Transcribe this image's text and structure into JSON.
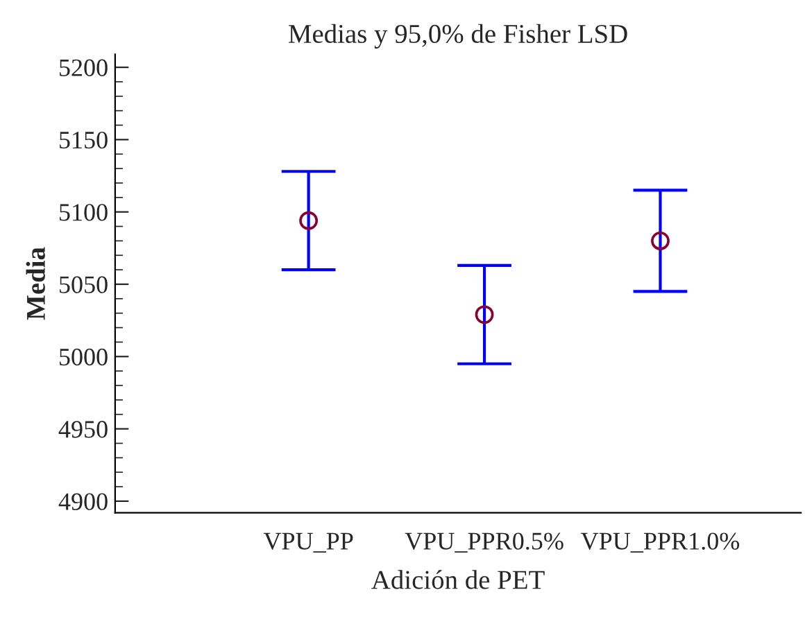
{
  "chart_data": {
    "type": "scatter",
    "title": "Medias y 95,0% de Fisher LSD",
    "xlabel": "Adición de PET",
    "ylabel": "Media",
    "categories": [
      "VPU_PP",
      "VPU_PPR0.5%",
      "VPU_PPR1.0%"
    ],
    "series": [
      {
        "color": "#8b0033",
        "values": [
          5094,
          5029,
          5080
        ],
        "errors": [
          34,
          34,
          35
        ]
      }
    ],
    "ylim": [
      4892,
      5209
    ],
    "yticks": [
      4900,
      4950,
      5000,
      5050,
      5100,
      5150,
      5200
    ],
    "marker": "circle",
    "grid": false
  }
}
